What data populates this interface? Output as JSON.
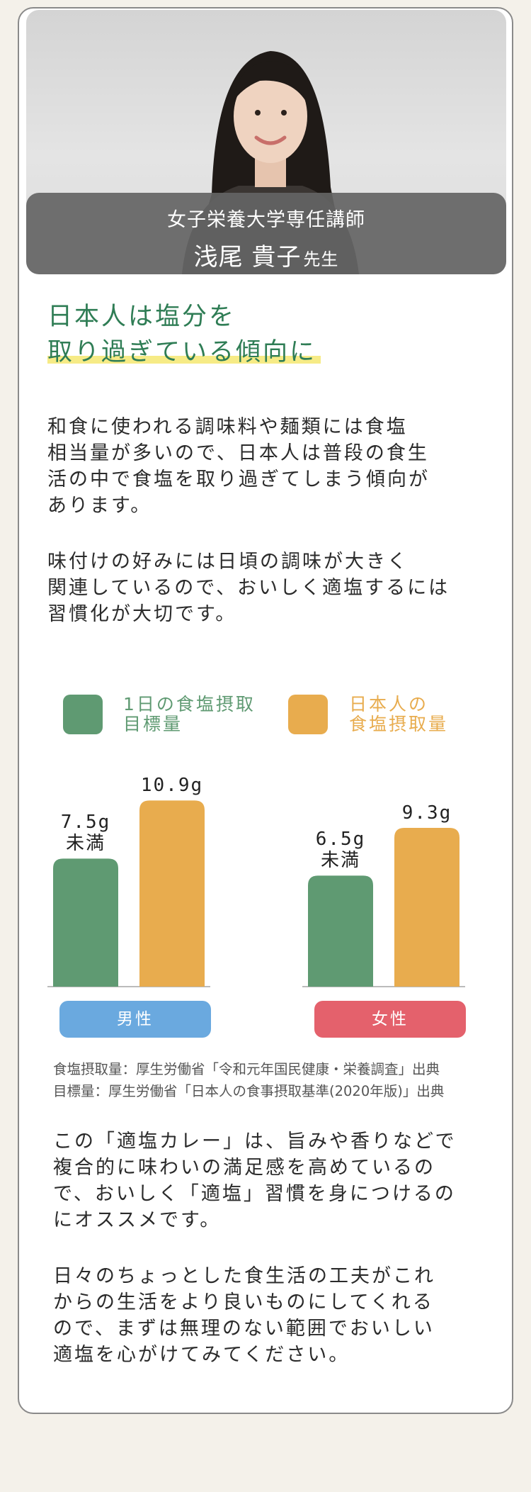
{
  "profile": {
    "title": "女子栄養大学専任講師",
    "name": "浅尾 貴子",
    "honorific": "先生"
  },
  "heading": {
    "line1": "日本人は塩分を",
    "line2": "取り過ぎている傾向に"
  },
  "intro": {
    "p1_lines": [
      "和食に使われる調味料や麺類には食塩",
      "相当量が多いので、日本人は普段の食生",
      "活の中で食塩を取り過ぎてしまう傾向が",
      "あります。"
    ],
    "p2_lines": [
      "味付けの好みには日頃の調味が大きく",
      "関連しているので、おいしく適塩するには",
      "習慣化が大切です。"
    ]
  },
  "colors": {
    "target": "#5f9a72",
    "actual": "#e8ac4e",
    "male": "#6aa9df",
    "female": "#e4616c"
  },
  "chart_data": {
    "type": "bar",
    "categories": [
      "男性",
      "女性"
    ],
    "series": [
      {
        "name": "1日の食塩摂取目標量",
        "name_lines": [
          "1日の食塩摂取",
          "目標量"
        ],
        "values": [
          7.5,
          6.5
        ],
        "labels": [
          [
            "7.5g",
            "未満"
          ],
          [
            "6.5g",
            "未満"
          ]
        ]
      },
      {
        "name": "日本人の食塩摂取量",
        "name_lines": [
          "日本人の",
          "食塩摂取量"
        ],
        "values": [
          10.9,
          9.3
        ],
        "labels": [
          [
            "10.9g"
          ],
          [
            "9.3g"
          ]
        ]
      }
    ],
    "ylim": [
      0,
      11
    ],
    "grid": false,
    "legend": "top",
    "sources": [
      "食塩摂取量：厚生労働省「令和元年国民健康・栄養調査」出典",
      "目標量：厚生労働省「日本人の食事摂取基準(2020年版)」出典"
    ]
  },
  "closing": {
    "p1_lines": [
      "この「適塩カレー」は、旨みや香りなどで",
      "複合的に味わいの満足感を高めているの",
      "で、おいしく「適塩」習慣を身につけるの",
      "にオススメです。"
    ],
    "p2_lines": [
      "日々のちょっとした食生活の工夫がこれ",
      "からの生活をより良いものにしてくれる",
      "ので、まずは無理のない範囲でおいしい",
      "適塩を心がけてみてください。"
    ]
  }
}
